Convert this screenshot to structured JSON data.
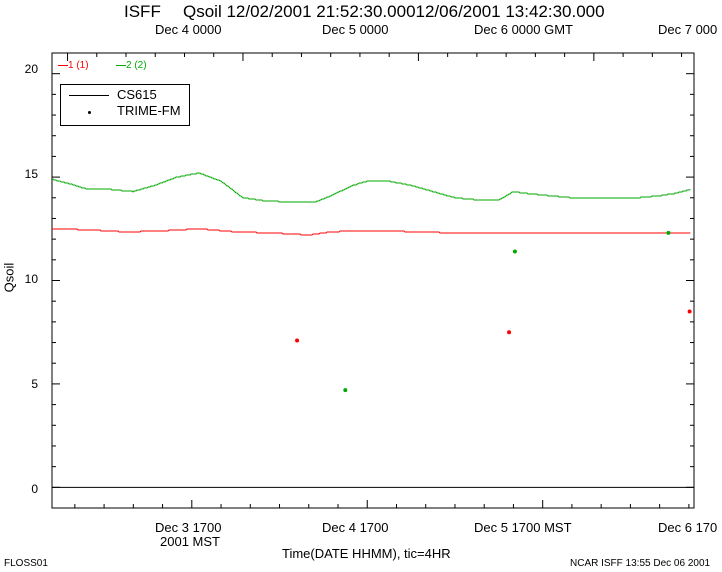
{
  "header": {
    "isff": "ISFF",
    "title": "Qsoil 12/02/2001 21:52:30.00012/06/2001 13:42:30.000"
  },
  "top_axis": {
    "labels": [
      "Dec  4 0000",
      "Dec  5 0000",
      "Dec  6 0000 GMT",
      "Dec  7 000"
    ]
  },
  "bottom_axis": {
    "labels": [
      "Dec  3 1700",
      "Dec  4 1700",
      "Dec  5 1700 MST",
      "Dec  6 170"
    ],
    "sublabel": "2001 MST"
  },
  "xlabel": "Time(DATE HHMM), tic=4HR",
  "ylabel": "Qsoil",
  "footer": {
    "left": "FLOSS01",
    "right": "NCAR ISFF 13:55 Dec 06 2001"
  },
  "series_labels": {
    "s1": "1 (1)",
    "s2": "2 (2)"
  },
  "legend": {
    "line_label": "CS615",
    "dot_label": "TRIME-FM"
  },
  "colors": {
    "s1": "#ff0000",
    "s2": "#00aa00",
    "axis": "#000000"
  },
  "chart_data": {
    "type": "line",
    "title": "Qsoil 12/02/2001 21:52:30.00012/06/2001 13:42:30.000",
    "xlabel": "Time(DATE HHMM), tic=4HR",
    "ylabel": "Qsoil",
    "x_unit": "hours since Dec 2 2001 17:00 MST",
    "xlim": [
      4.875,
      92.7
    ],
    "ylim": [
      -1,
      21
    ],
    "yticks": [
      0,
      5,
      10,
      15,
      20
    ],
    "grid": false,
    "series": [
      {
        "name": "1 (1)",
        "kind": "CS615",
        "x": [
          4.9,
          10,
          15,
          20,
          25,
          30,
          35,
          40,
          43,
          46,
          50,
          55,
          60,
          65,
          70,
          75,
          80,
          85,
          92.2
        ],
        "y": [
          12.5,
          12.45,
          12.35,
          12.4,
          12.5,
          12.35,
          12.3,
          12.2,
          12.35,
          12.4,
          12.4,
          12.35,
          12.3,
          12.3,
          12.3,
          12.3,
          12.3,
          12.3,
          12.3
        ]
      },
      {
        "name": "2 (2)",
        "kind": "CS615",
        "x": [
          4.9,
          7,
          10,
          13,
          16,
          19,
          22,
          25,
          28,
          31,
          34,
          37,
          41,
          43,
          46,
          48,
          51,
          54,
          57,
          60,
          63,
          66,
          68,
          70,
          73,
          76,
          79,
          82,
          85,
          88,
          90,
          92.2
        ],
        "y": [
          14.9,
          14.7,
          14.4,
          14.4,
          14.3,
          14.6,
          15.0,
          15.2,
          14.8,
          14.0,
          13.85,
          13.8,
          13.8,
          14.1,
          14.6,
          14.8,
          14.8,
          14.6,
          14.3,
          14.0,
          13.9,
          13.9,
          14.3,
          14.2,
          14.1,
          14.0,
          14.0,
          14.0,
          14.0,
          14.1,
          14.2,
          14.4
        ]
      },
      {
        "name": "1 (1)",
        "kind": "TRIME-FM",
        "x": [
          38.4,
          67.4,
          92.1
        ],
        "y": [
          7.1,
          7.5,
          8.5
        ]
      },
      {
        "name": "2 (2)",
        "kind": "TRIME-FM",
        "x": [
          45.0,
          68.2,
          89.2
        ],
        "y": [
          4.7,
          11.4,
          12.3
        ]
      }
    ]
  }
}
